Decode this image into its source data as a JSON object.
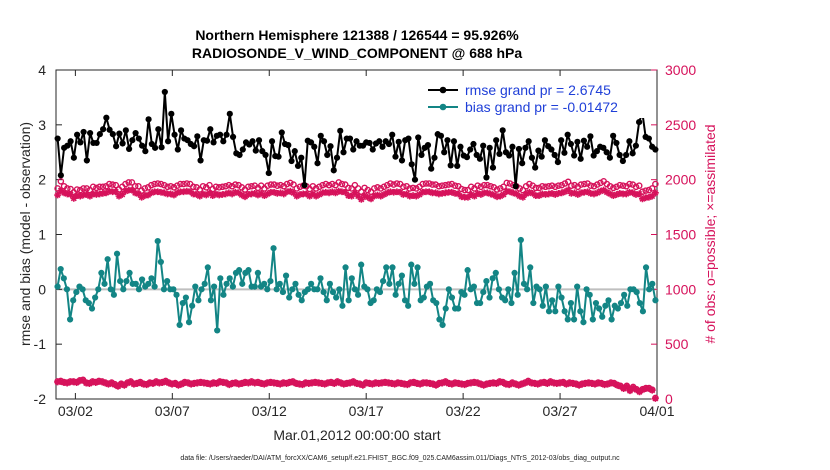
{
  "chart_data": {
    "type": "line",
    "title": "Northern Hemisphere 121388 / 126544 = 95.926%",
    "subtitle": "RADIOSONDE_V_WIND_COMPONENT @ 688 hPa",
    "xlabel": "Mar.01,2012 00:00:00 start",
    "ylabel": "rmse and bias (model - observation)",
    "y2label": "# of obs: o=possible; ×=assimilated",
    "xlim": [
      0,
      31
    ],
    "ylim": [
      -2,
      4
    ],
    "y2lim": [
      0,
      3000
    ],
    "x_ticks": [
      1,
      6,
      11,
      16,
      21,
      26,
      31
    ],
    "x_tick_labels": [
      "03/02",
      "03/07",
      "03/12",
      "03/17",
      "03/22",
      "03/27",
      "04/01"
    ],
    "y_ticks": [
      -2,
      -1,
      0,
      1,
      2,
      3,
      4
    ],
    "y2_ticks": [
      0,
      500,
      1000,
      1500,
      2000,
      2500,
      3000
    ],
    "footnote": "data file: /Users/raeder/DAI/ATM_forcXX/CAM6_setup/f.e21.FHIST_BGC.f09_025.CAM6assim.011/Diags_NTrS_2012-03/obs_diag_output.nc",
    "legend": {
      "position": "top-right",
      "entries": [
        "rmse grand pr = 2.6745",
        "bias grand pr = -0.01472"
      ]
    },
    "colors": {
      "rmse": "#000000",
      "bias": "#138585",
      "obs": "#d6125b",
      "zero_line": "#bfbfbf"
    },
    "series": [
      {
        "name": "rmse",
        "axis": "left",
        "marker": "filled-circle",
        "values": [
          2.75,
          2.08,
          2.58,
          2.62,
          2.7,
          2.4,
          2.82,
          2.68,
          2.87,
          2.35,
          2.85,
          2.67,
          2.67,
          2.83,
          2.92,
          3.13,
          2.91,
          2.83,
          2.61,
          2.84,
          2.66,
          2.9,
          2.56,
          2.72,
          2.85,
          2.75,
          2.62,
          2.52,
          3.1,
          2.65,
          2.58,
          2.92,
          2.59,
          3.6,
          2.7,
          3.2,
          2.82,
          2.55,
          2.9,
          2.75,
          2.72,
          2.65,
          2.61,
          2.79,
          2.35,
          2.72,
          2.71,
          2.92,
          2.68,
          2.8,
          2.82,
          2.7,
          2.82,
          3.2,
          2.78,
          2.48,
          2.45,
          2.55,
          2.68,
          2.64,
          2.7,
          2.53,
          2.72,
          2.52,
          2.45,
          2.12,
          2.7,
          2.43,
          2.42,
          2.86,
          2.65,
          2.63,
          2.34,
          2.52,
          2.25,
          2.4,
          1.9,
          2.71,
          2.68,
          2.6,
          2.3,
          2.8,
          2.7,
          2.45,
          2.61,
          2.17,
          2.4,
          2.89,
          2.5,
          2.75,
          2.75,
          2.55,
          2.7,
          2.62,
          2.62,
          2.68,
          2.67,
          2.55,
          2.66,
          2.7,
          2.6,
          2.7,
          2.65,
          2.82,
          2.42,
          2.69,
          2.35,
          2.72,
          2.75,
          2.28,
          2.0,
          2.77,
          2.45,
          2.58,
          2.63,
          2.2,
          2.4,
          2.83,
          2.8,
          2.5,
          2.72,
          2.26,
          2.7,
          2.25,
          2.6,
          2.44,
          2.41,
          2.55,
          2.65,
          2.45,
          2.38,
          2.62,
          2.04,
          2.58,
          2.22,
          2.72,
          2.47,
          2.9,
          2.5,
          2.44,
          2.6,
          1.88,
          2.56,
          2.3,
          2.58,
          2.7,
          2.4,
          2.22,
          2.53,
          2.42,
          2.72,
          2.61,
          2.55,
          2.45,
          2.32,
          2.72,
          2.49,
          2.82,
          2.65,
          2.44,
          2.69,
          2.38,
          2.71,
          2.6,
          2.79,
          2.44,
          2.52,
          2.6,
          2.58,
          2.5,
          2.4,
          2.8,
          2.67,
          2.45,
          2.34,
          2.45,
          2.7,
          2.48,
          2.62,
          3.05,
          3.22,
          2.78,
          2.75,
          2.6,
          2.55
        ]
      },
      {
        "name": "bias",
        "axis": "left",
        "marker": "filled-circle",
        "values": [
          0.05,
          0.37,
          0.2,
          0.0,
          -0.55,
          -0.2,
          -0.05,
          0.05,
          0.0,
          -0.2,
          -0.25,
          -0.35,
          -0.15,
          0.0,
          0.3,
          0.1,
          0.55,
          0.0,
          -0.1,
          0.65,
          0.15,
          0.0,
          0.15,
          0.3,
          0.1,
          0.1,
          0.0,
          0.18,
          0.05,
          0.1,
          0.2,
          0.05,
          0.88,
          0.5,
          0.0,
          0.15,
          0.0,
          0.0,
          -0.1,
          -0.65,
          -0.25,
          -0.15,
          -0.6,
          -0.3,
          0.05,
          -0.2,
          0.0,
          0.1,
          0.4,
          -0.2,
          0.05,
          -0.75,
          0.2,
          -0.1,
          0.1,
          0.2,
          0.05,
          0.3,
          0.35,
          0.1,
          0.3,
          0.35,
          0.05,
          0.05,
          0.3,
          0.05,
          0.1,
          0.0,
          0.15,
          0.75,
          0.0,
          0.1,
          -0.05,
          0.25,
          -0.15,
          0.0,
          0.1,
          -0.1,
          -0.2,
          -0.05,
          0.0,
          0.1,
          0.0,
          0.0,
          0.2,
          -0.05,
          -0.2,
          0.1,
          -0.05,
          -0.15,
          0.0,
          -0.3,
          0.4,
          -0.2,
          0.2,
          0.0,
          -0.1,
          0.45,
          0.05,
          0.0,
          -0.25,
          -0.2,
          0.0,
          -0.05,
          0.15,
          0.4,
          0.1,
          0.4,
          -0.1,
          0.1,
          0.25,
          -0.2,
          -0.3,
          0.45,
          0.1,
          0.4,
          -0.2,
          -0.15,
          0.05,
          0.1,
          -0.2,
          -0.25,
          -0.55,
          -0.65,
          -0.35,
          0.0,
          -0.15,
          -0.35,
          -0.35,
          -0.05,
          -0.1,
          0.35,
          0.0,
          0.05,
          -0.25,
          -0.25,
          -0.05,
          0.15,
          -0.15,
          0.2,
          0.3,
          0.0,
          -0.15,
          -0.2,
          0.0,
          -0.25,
          0.3,
          -0.1,
          0.9,
          0.1,
          0.0,
          0.4,
          -0.25,
          0.05,
          0.0,
          -0.3,
          0.05,
          -0.4,
          -0.2,
          -0.4,
          0.05,
          -0.15,
          -0.4,
          -0.55,
          -0.25,
          -0.55,
          0.05,
          -0.4,
          -0.6,
          0.0,
          -0.1,
          -0.55,
          -0.25,
          -0.35,
          -0.5,
          -0.3,
          -0.2,
          -0.55,
          -0.3,
          -0.35,
          -0.25,
          -0.1,
          -0.3,
          0.0,
          0.0,
          -0.05,
          -0.25,
          -0.4,
          0.4,
          0.0,
          0.1,
          -0.2
        ]
      },
      {
        "name": "obs possible",
        "axis": "right",
        "marker": "o",
        "values": [
          1920,
          1985,
          1940,
          1920,
          1915,
          1885,
          1910,
          1905,
          1920,
          1920,
          1905,
          1935,
          1925,
          1935,
          1935,
          1940,
          1960,
          1955,
          1950,
          1910,
          1935,
          1960,
          1975,
          1975,
          1940,
          1940,
          1900,
          1920,
          1930,
          1950,
          1960,
          1965,
          1960,
          1950,
          1935,
          1940,
          1930,
          1945,
          1960,
          1960,
          1965,
          1960,
          1935,
          1930,
          1910,
          1940,
          1930,
          1950,
          1915,
          1935,
          1930,
          1935,
          1940,
          1950,
          1940,
          1955,
          1950,
          1930,
          1910,
          1935,
          1940,
          1945,
          1925,
          1945,
          1920,
          1945,
          1955,
          1955,
          1945,
          1950,
          1940,
          1960,
          1970,
          1955,
          1920,
          1935,
          1945,
          1940,
          1915,
          1940,
          1920,
          1935,
          1950,
          1960,
          1950,
          1960,
          1950,
          1975,
          1960,
          1955,
          1925,
          1920,
          1950,
          1920,
          1890,
          1925,
          1905,
          1890,
          1920,
          1930,
          1920,
          1935,
          1950,
          1965,
          1955,
          1965,
          1960,
          1935,
          1940,
          1920,
          1925,
          1920,
          1935,
          1960,
          1965,
          1965,
          1955,
          1955,
          1940,
          1945,
          1950,
          1955,
          1960,
          1945,
          1940,
          1915,
          1905,
          1905,
          1935,
          1920,
          1945,
          1935,
          1950,
          1950,
          1940,
          1930,
          1910,
          1920,
          1935,
          1970,
          1965,
          1950,
          1940,
          1920,
          1905,
          1940,
          1960,
          1945,
          1925,
          1925,
          1940,
          1935,
          1940,
          1945,
          1935,
          1945,
          1950,
          1965,
          1980,
          1945,
          1950,
          1935,
          1955,
          1960,
          1965,
          1945,
          1940,
          1955,
          1970,
          1985,
          1960,
          1940,
          1925,
          1935,
          1950,
          1945,
          1940,
          1960,
          1955,
          1935,
          1945,
          1890,
          1900,
          1905,
          1920,
          1960
        ]
      },
      {
        "name": "obs assimilated",
        "axis": "right",
        "marker": "asterisk",
        "values": [
          1860,
          1900,
          1880,
          1870,
          1865,
          1830,
          1855,
          1850,
          1860,
          1865,
          1850,
          1870,
          1865,
          1870,
          1875,
          1880,
          1895,
          1890,
          1890,
          1850,
          1865,
          1895,
          1905,
          1905,
          1880,
          1870,
          1840,
          1855,
          1860,
          1880,
          1890,
          1890,
          1885,
          1880,
          1870,
          1870,
          1860,
          1880,
          1890,
          1890,
          1895,
          1890,
          1870,
          1865,
          1850,
          1870,
          1860,
          1880,
          1855,
          1870,
          1860,
          1865,
          1870,
          1880,
          1870,
          1885,
          1880,
          1860,
          1845,
          1865,
          1870,
          1875,
          1860,
          1875,
          1855,
          1870,
          1885,
          1885,
          1875,
          1880,
          1870,
          1890,
          1895,
          1880,
          1850,
          1865,
          1870,
          1870,
          1850,
          1870,
          1850,
          1865,
          1880,
          1885,
          1880,
          1890,
          1880,
          1895,
          1890,
          1885,
          1855,
          1850,
          1880,
          1850,
          1820,
          1855,
          1840,
          1825,
          1850,
          1860,
          1850,
          1865,
          1880,
          1890,
          1885,
          1890,
          1885,
          1865,
          1870,
          1850,
          1855,
          1850,
          1865,
          1885,
          1890,
          1890,
          1880,
          1880,
          1870,
          1875,
          1880,
          1885,
          1885,
          1875,
          1870,
          1845,
          1840,
          1840,
          1865,
          1850,
          1875,
          1865,
          1880,
          1880,
          1870,
          1860,
          1845,
          1850,
          1865,
          1895,
          1890,
          1880,
          1870,
          1850,
          1840,
          1870,
          1885,
          1875,
          1855,
          1855,
          1870,
          1865,
          1870,
          1875,
          1865,
          1875,
          1880,
          1890,
          1905,
          1875,
          1880,
          1865,
          1880,
          1885,
          1890,
          1875,
          1870,
          1880,
          1895,
          1905,
          1885,
          1870,
          1855,
          1865,
          1875,
          1870,
          1870,
          1885,
          1880,
          1865,
          1870,
          1825,
          1835,
          1840,
          1850,
          1880
        ]
      },
      {
        "name": "obs possible (bottom)",
        "axis": "right",
        "marker": "o",
        "values": [
          160,
          165,
          155,
          150,
          160,
          160,
          155,
          170,
          175,
          150,
          145,
          160,
          155,
          165,
          160,
          150,
          140,
          150,
          135,
          120,
          140,
          130,
          150,
          160,
          140,
          145,
          155,
          140,
          135,
          150,
          145,
          160,
          150,
          155,
          165,
          150,
          140,
          145,
          130,
          140,
          155,
          150,
          140,
          145,
          150,
          155,
          150,
          145,
          140,
          150,
          145,
          160,
          155,
          150,
          135,
          145,
          150,
          140,
          145,
          155,
          150,
          160,
          150,
          155,
          145,
          140,
          150,
          155,
          150,
          145,
          140,
          150,
          145,
          155,
          160,
          145,
          140,
          135,
          150,
          145,
          150,
          155,
          150,
          145,
          140,
          150,
          155,
          145,
          160,
          150,
          140,
          145,
          150,
          160,
          145,
          140,
          130,
          150,
          145,
          140,
          150,
          145,
          150,
          155,
          150,
          145,
          140,
          150,
          145,
          140,
          135,
          150,
          155,
          145,
          140,
          150,
          150,
          145,
          140,
          130,
          145,
          150,
          160,
          145,
          140,
          150,
          145,
          140,
          135,
          145,
          150,
          155,
          150,
          140,
          130,
          140,
          145,
          150,
          145,
          160,
          155,
          140,
          135,
          150,
          140,
          130,
          140,
          150,
          165,
          150,
          145,
          140,
          150,
          155,
          145,
          160,
          150,
          145,
          150,
          155,
          140,
          150,
          145,
          140,
          130,
          140,
          145,
          150,
          145,
          140,
          150,
          145,
          135,
          140,
          150,
          145,
          130,
          120,
          100,
          120,
          80,
          110,
          90,
          70,
          90,
          100,
          100,
          85,
          10
        ]
      },
      {
        "name": "obs assimilated (bottom)",
        "axis": "right",
        "marker": "asterisk",
        "values": [
          155,
          160,
          150,
          145,
          155,
          155,
          150,
          165,
          170,
          145,
          140,
          155,
          150,
          160,
          155,
          145,
          135,
          145,
          130,
          115,
          135,
          125,
          145,
          155,
          135,
          140,
          150,
          135,
          130,
          145,
          140,
          155,
          145,
          150,
          160,
          145,
          135,
          140,
          125,
          135,
          150,
          145,
          135,
          140,
          145,
          150,
          145,
          140,
          135,
          145,
          140,
          155,
          150,
          145,
          130,
          140,
          145,
          135,
          140,
          150,
          145,
          155,
          145,
          150,
          140,
          135,
          145,
          150,
          145,
          140,
          135,
          145,
          140,
          150,
          155,
          140,
          135,
          130,
          145,
          140,
          145,
          150,
          145,
          140,
          135,
          145,
          150,
          140,
          155,
          145,
          135,
          140,
          145,
          155,
          140,
          135,
          125,
          145,
          140,
          135,
          145,
          140,
          145,
          150,
          145,
          140,
          135,
          145,
          140,
          135,
          130,
          145,
          150,
          140,
          135,
          145,
          145,
          140,
          135,
          125,
          140,
          145,
          155,
          140,
          135,
          145,
          140,
          135,
          130,
          140,
          145,
          150,
          145,
          135,
          125,
          135,
          140,
          145,
          140,
          155,
          150,
          135,
          130,
          145,
          135,
          125,
          135,
          145,
          160,
          145,
          140,
          135,
          145,
          150,
          140,
          155,
          145,
          140,
          145,
          150,
          135,
          145,
          140,
          135,
          125,
          135,
          140,
          145,
          140,
          135,
          145,
          140,
          130,
          135,
          145,
          140,
          125,
          115,
          95,
          115,
          75,
          105,
          85,
          65,
          85,
          95,
          95,
          80,
          5
        ]
      }
    ]
  }
}
